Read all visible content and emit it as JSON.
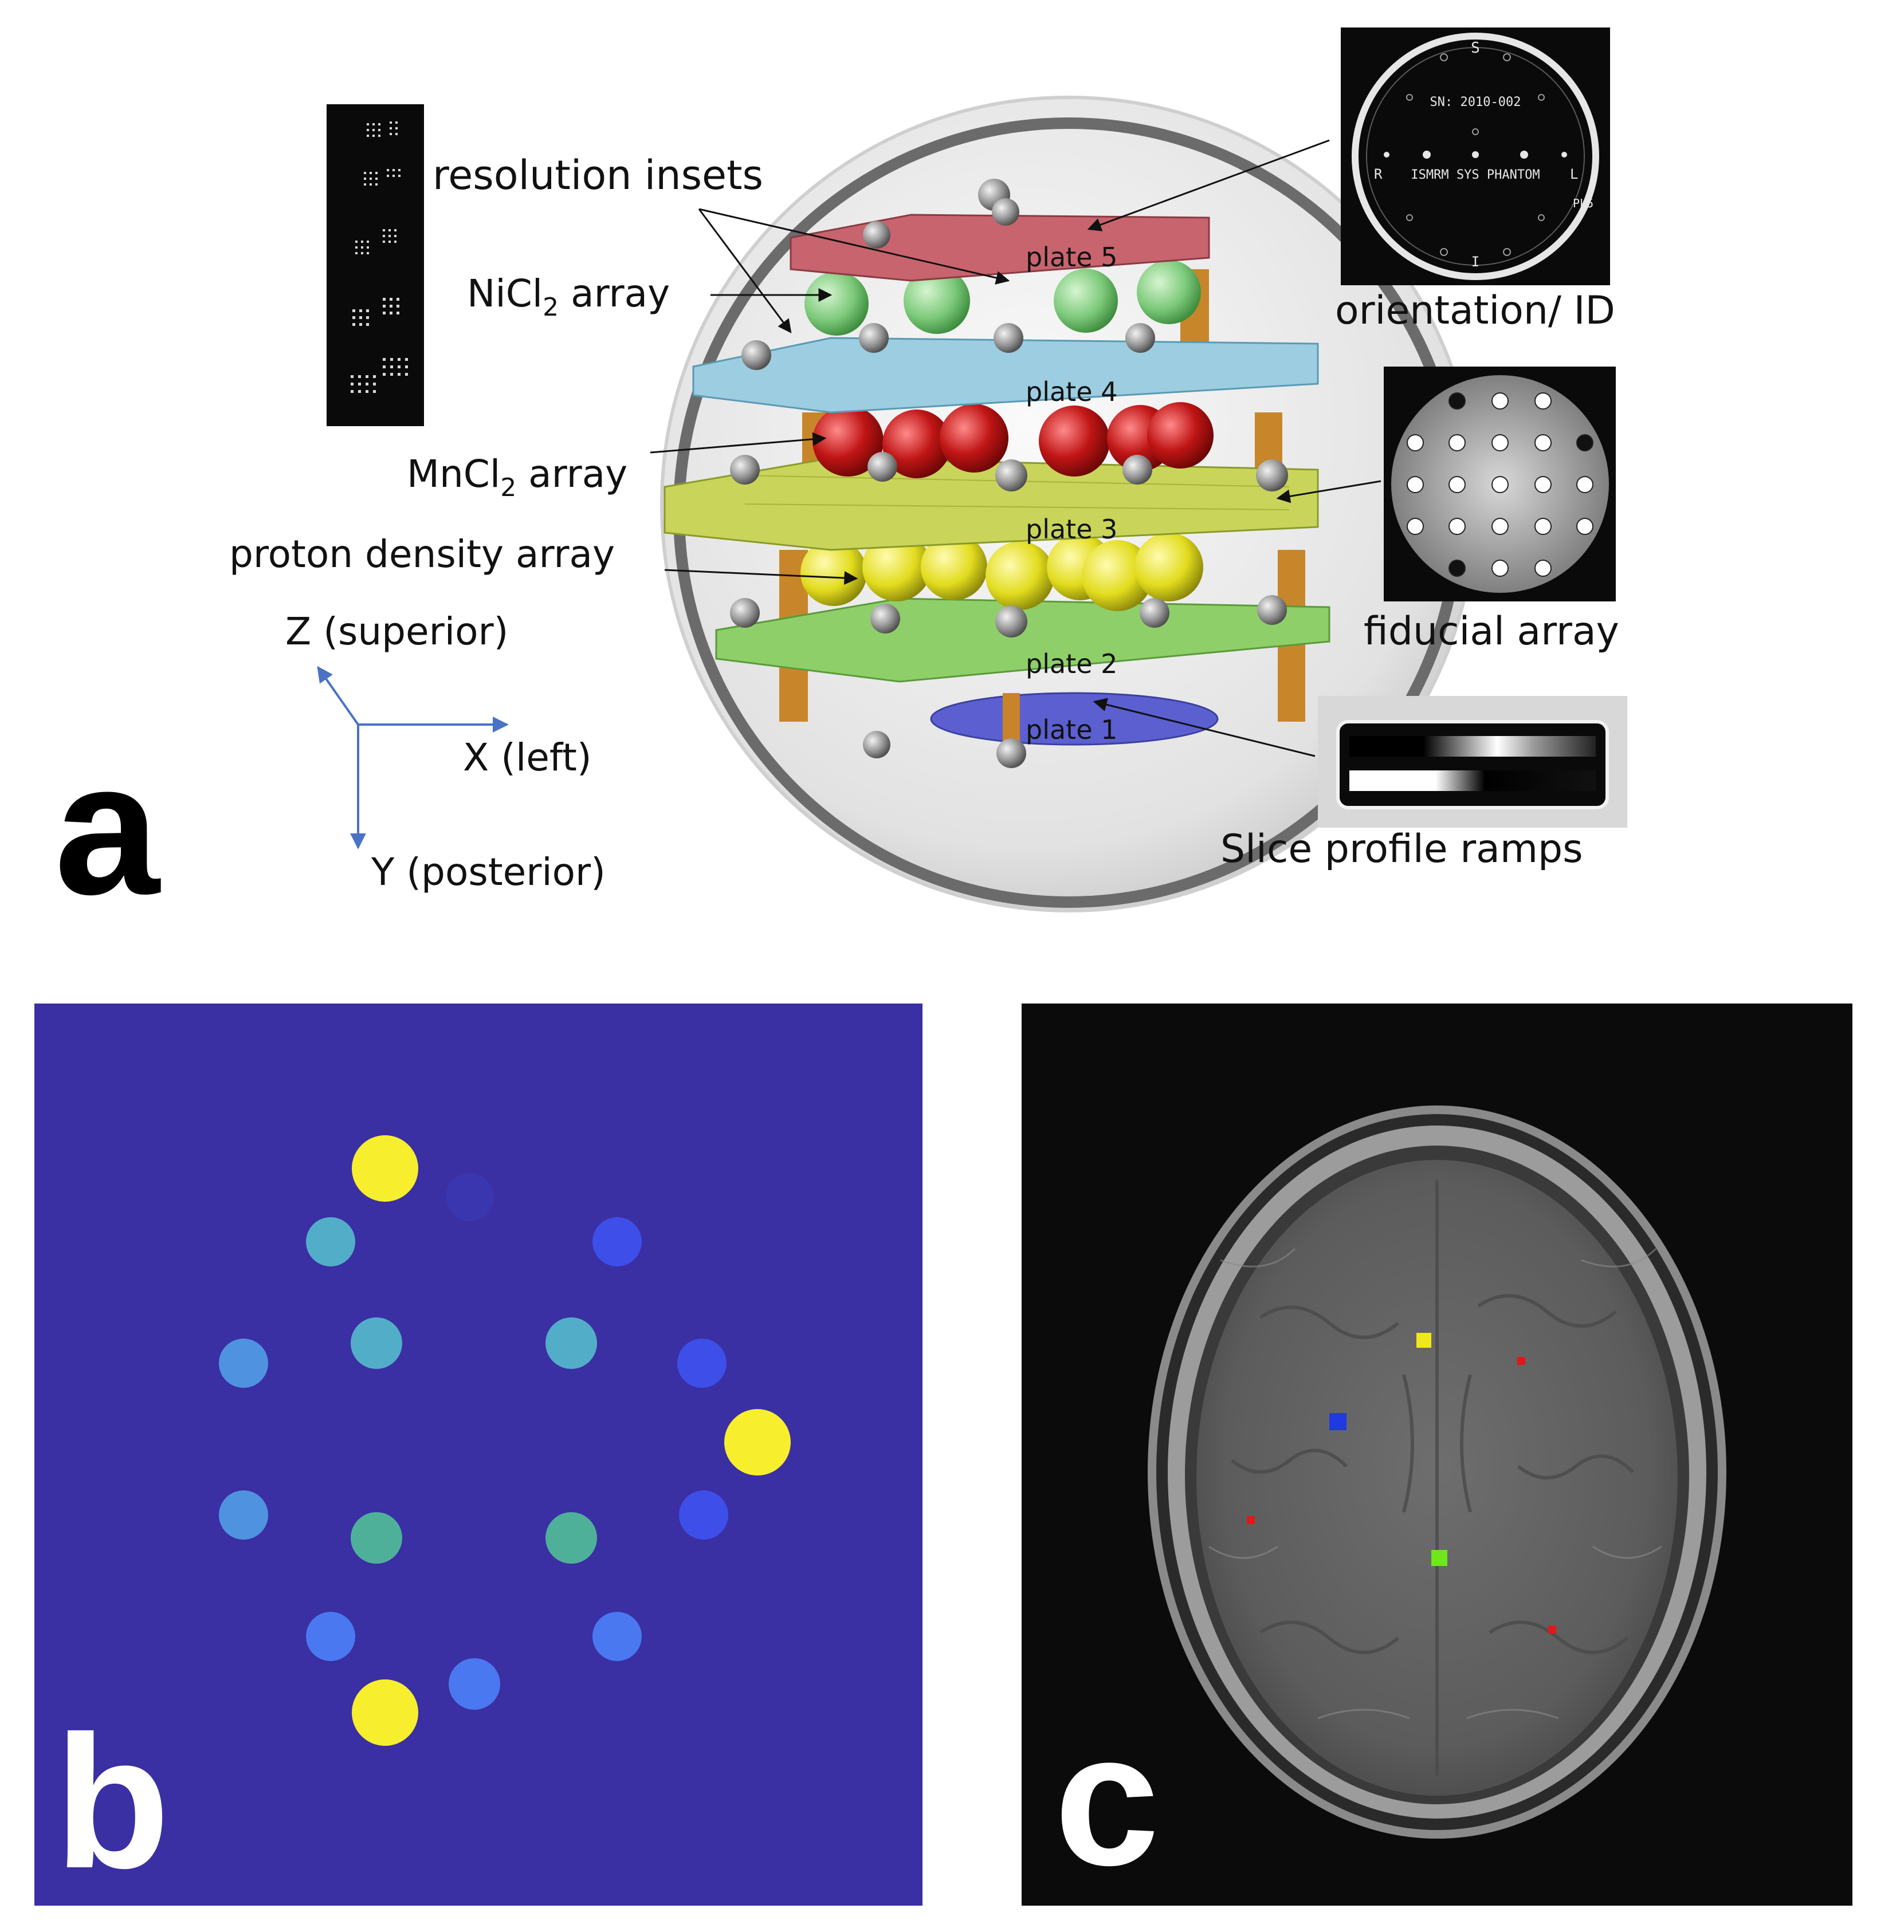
{
  "panel_a": {
    "letter": "a",
    "labels": {
      "resolution_insets": "resolution insets",
      "nicl2_prefix": "NiCl",
      "nicl2_sub": "2",
      "nicl2_suffix": " array",
      "mncl2_prefix": "MnCl",
      "mncl2_sub": "2",
      "mncl2_suffix": " array",
      "proton_density": "proton density array",
      "plate5": "plate 5",
      "plate4": "plate 4",
      "plate3": "plate 3",
      "plate2": "plate 2",
      "plate1": "plate 1",
      "orientation_id": "orientation/ ID",
      "fiducial_array": "fiducial array",
      "slice_profile_ramps": "Slice profile ramps"
    },
    "axes": {
      "z": "Z (superior)",
      "x": "X (left)",
      "y": "Y (posterior)",
      "color": "#4a72c4"
    },
    "orientation_image": {
      "top": "S",
      "bottom": "I",
      "left": "R",
      "right": "L",
      "serial": "SN: 2010-002",
      "name": "ISMRM SYS PHANTOM",
      "plate": "PL5"
    },
    "plate_colors": {
      "plate5": "#c8646e",
      "plate4": "#9ccde0",
      "plate3": "#c9d55a",
      "plate2": "#8fcf6a",
      "plate1": "#5b5fd0"
    },
    "array_colors": {
      "nicl2": "#7cc97a",
      "mncl2": "#c01515",
      "proton_density": "#e2dc1e"
    }
  },
  "panel_b": {
    "letter": "b",
    "background": "#3a2fa3",
    "colors": {
      "yellow": "#f7ef2e",
      "teal": "#52aec8",
      "sky": "#4f93e0",
      "green": "#4fb09a",
      "blue": "#3d4fe8",
      "mid_blue": "#4a78f0",
      "dark": "#3a36b0"
    }
  },
  "panel_c": {
    "letter": "c",
    "background": "#0b0b0b",
    "markers": {
      "yellow": "#f0e81c",
      "blue": "#1f3ae0",
      "green": "#6ee81c",
      "red": "#e01818"
    }
  }
}
